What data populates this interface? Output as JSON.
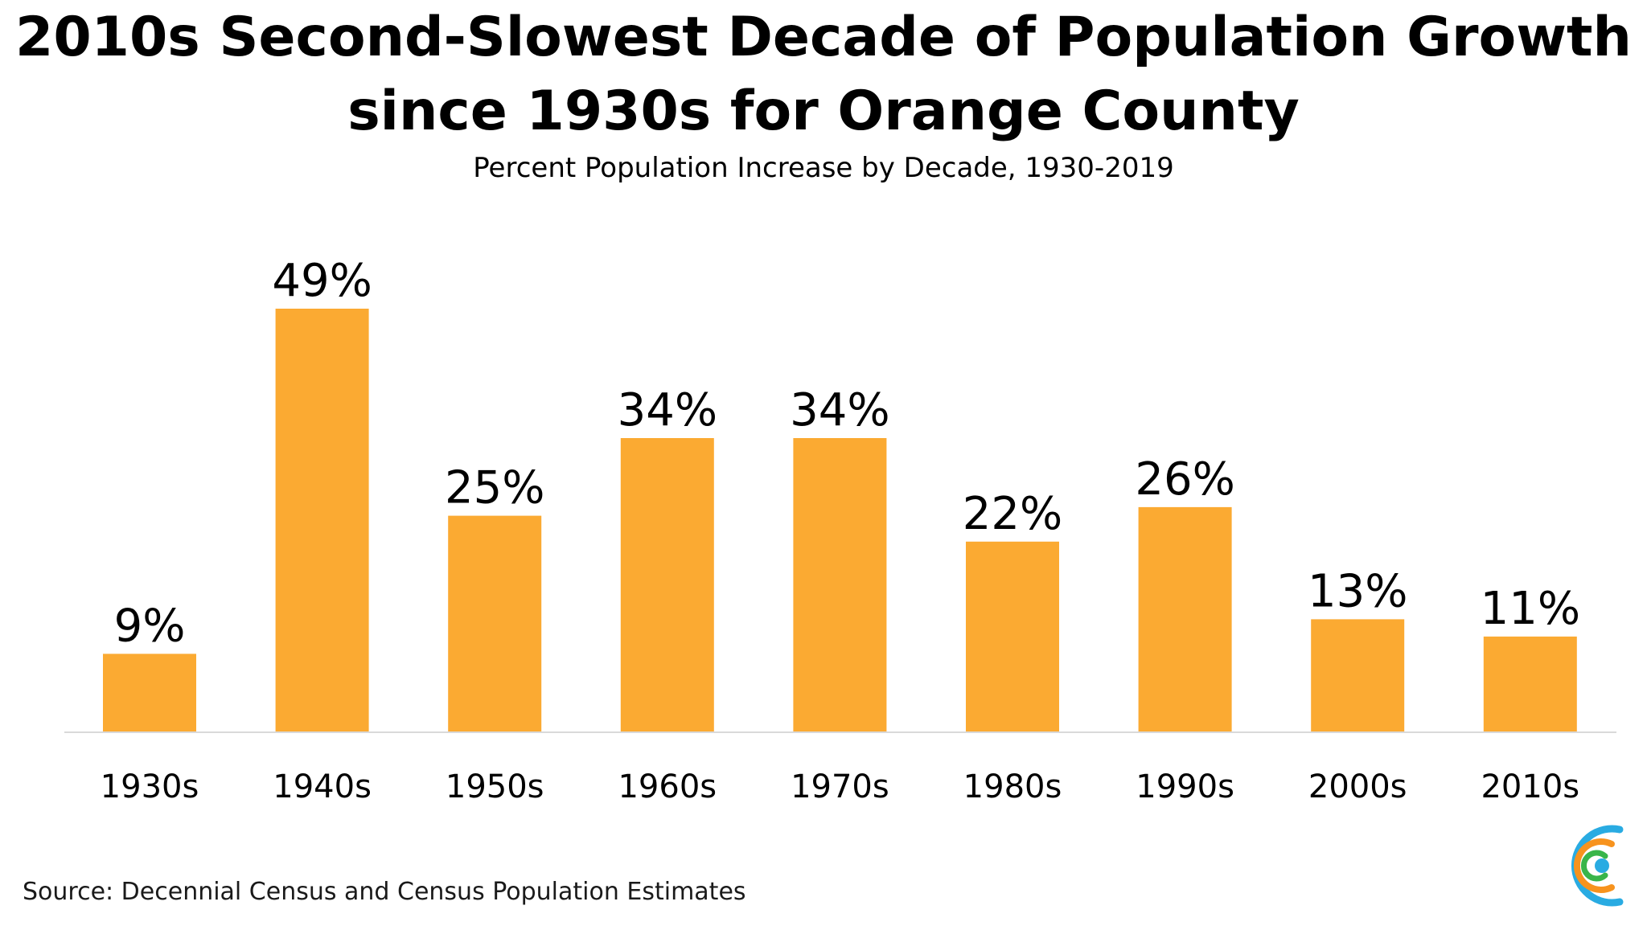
{
  "header": {
    "title_line1": "2010s Second-Slowest Decade of Population Growth",
    "title_line2": "since 1930s for Orange County",
    "subtitle": "Percent Population Increase by Decade, 1930-2019"
  },
  "footer": {
    "source": "Source: Decennial Census and Census Population Estimates"
  },
  "colors": {
    "bar": "#FBAA32",
    "axis": "#d9d9d9",
    "logo_blue": "#29ABE2",
    "logo_orange": "#F7931E",
    "logo_green": "#39B54A"
  },
  "logo": {
    "icon": "ring-logo-icon"
  },
  "chart_data": {
    "type": "bar",
    "title": "2010s Second-Slowest Decade of Population Growth since 1930s for Orange County",
    "subtitle": "Percent Population Increase by Decade, 1930-2019",
    "categories": [
      "1930s",
      "1940s",
      "1950s",
      "1960s",
      "1970s",
      "1980s",
      "1990s",
      "2000s",
      "2010s"
    ],
    "values": [
      9,
      49,
      25,
      34,
      34,
      22,
      26,
      13,
      11
    ],
    "data_labels": [
      "9%",
      "49%",
      "25%",
      "34%",
      "34%",
      "22%",
      "26%",
      "13%",
      "11%"
    ],
    "xlabel": "",
    "ylabel": "",
    "ylim": [
      0,
      49
    ],
    "grid": false,
    "legend": "none"
  }
}
